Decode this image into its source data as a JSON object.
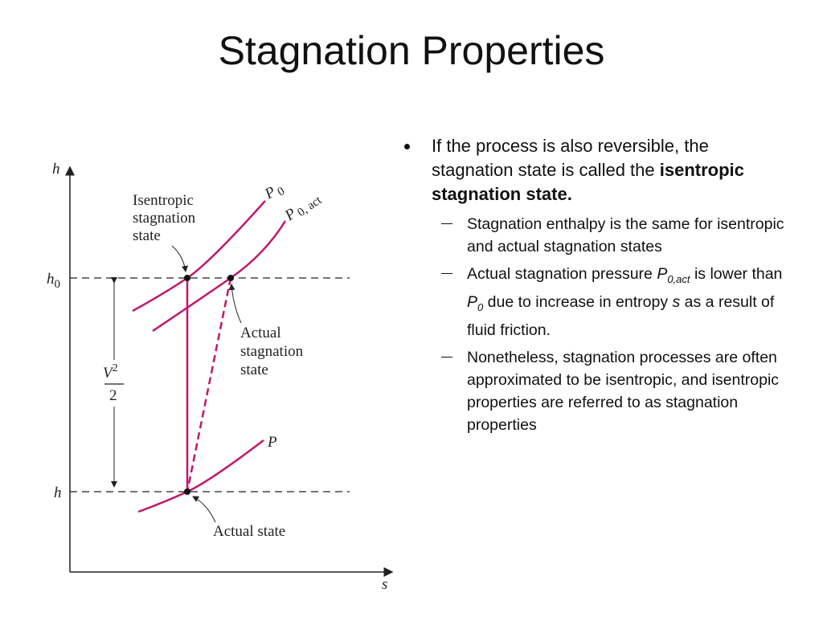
{
  "title": "Stagnation Properties",
  "diagram": {
    "axis_y": "h",
    "axis_x": "s",
    "h0": "h",
    "h0_sub": "0",
    "h": "h",
    "v2_num": "V",
    "v2_exp": "2",
    "v2_den": "2",
    "p0": "P",
    "p0_sub": "0",
    "p0act": "P",
    "p0act_sub": "0, act",
    "p": "P",
    "isentropic_label": [
      "Isentropic",
      "stagnation",
      "state"
    ],
    "actual_stag_label": [
      "Actual",
      "stagnation",
      "state"
    ],
    "actual_state": "Actual state"
  },
  "bullets": [
    {
      "text": "If the process is also reversible, the stagnation state is called the",
      "bold": "isentropic stagnation state."
    }
  ],
  "sub_bullets": [
    {
      "text": "Stagnation enthalpy is the same for isentropic and actual stagnation states"
    },
    {
      "t1": "Actual stagnation pressure",
      "p1": "P",
      "p1_sub": "0,act",
      "t2": "is lower than",
      "p2": "P",
      "p2_sub": "0",
      "t3": "due to increase in entropy",
      "s": "s",
      "t4": "as a result of fluid friction."
    },
    {
      "text": "Nonetheless, stagnation processes are often approximated to be isentropic, and isentropic properties are referred to as stagnation properties"
    }
  ]
}
